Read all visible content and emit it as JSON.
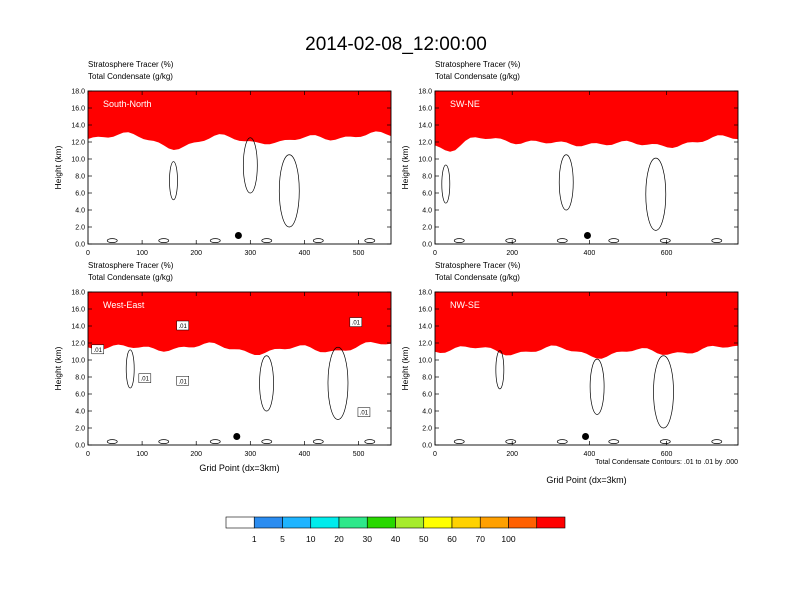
{
  "figure_title": "2014-02-08_12:00:00",
  "contour_info": "Total Condensate Contours: .01 to .01 by .000",
  "colorbar": {
    "colors": [
      "#ffffff",
      "#2b8cf0",
      "#1fb4ff",
      "#00ecec",
      "#2ee88a",
      "#28d800",
      "#a6ec2c",
      "#ffff00",
      "#ffd200",
      "#ffa000",
      "#ff6000",
      "#ff0000"
    ],
    "labels": [
      "1",
      "5",
      "10",
      "20",
      "30",
      "40",
      "50",
      "60",
      "70",
      "100"
    ]
  },
  "chart_data": [
    {
      "type": "contour-section",
      "panel_label": "South-North",
      "title_line1": "Stratosphere Tracer   (%)",
      "title_line2": "Total Condensate   (g/kg)",
      "ylabel": "Height (km)",
      "xlabel": "",
      "ylim": [
        0,
        18
      ],
      "xlim": [
        0,
        560
      ],
      "xticks": [
        "0",
        "100",
        "200",
        "300",
        "400",
        "500"
      ],
      "xtick_values": [
        0,
        100,
        200,
        300,
        400,
        500
      ],
      "yticks": [
        "0.0",
        "2.0",
        "4.0",
        "6.0",
        "8.0",
        "10.0",
        "12.0",
        "14.0",
        "16.0",
        "18.0"
      ],
      "marker_x": 278,
      "marker_y": 1.0,
      "contour_labels": [],
      "base_km": 15.2,
      "dips": [
        [
          170,
          4.0,
          60
        ],
        [
          300,
          1.2,
          25
        ],
        [
          360,
          3.2,
          40
        ]
      ]
    },
    {
      "type": "contour-section",
      "panel_label": "SW-NE",
      "title_line1": "Stratosphere Tracer   (%)",
      "title_line2": "Total Condensate   (g/kg)",
      "ylabel": "Height (km)",
      "xlabel": "",
      "ylim": [
        0,
        18
      ],
      "xlim": [
        0,
        785
      ],
      "xticks": [
        "0",
        "200",
        "400",
        "600"
      ],
      "xtick_values": [
        0,
        200,
        400,
        600
      ],
      "yticks": [
        "0.0",
        "2.0",
        "4.0",
        "6.0",
        "8.0",
        "10.0",
        "12.0",
        "14.0",
        "16.0",
        "18.0"
      ],
      "marker_x": 395,
      "marker_y": 1.0,
      "contour_labels": [],
      "base_km": 14.8,
      "dips": [
        [
          40,
          4.0,
          45
        ],
        [
          340,
          2.8,
          70
        ],
        [
          560,
          3.2,
          80
        ]
      ]
    },
    {
      "type": "contour-section",
      "panel_label": "West-East",
      "title_line1": "Stratosphere Tracer   (%)",
      "title_line2": "Total Condensate   (g/kg)",
      "ylabel": "Height (km)",
      "xlabel": "Grid Point (dx=3km)",
      "ylim": [
        0,
        18
      ],
      "xlim": [
        0,
        560
      ],
      "xticks": [
        "0",
        "100",
        "200",
        "300",
        "400",
        "500"
      ],
      "xtick_values": [
        0,
        100,
        200,
        300,
        400,
        500
      ],
      "yticks": [
        "0.0",
        "2.0",
        "4.0",
        "6.0",
        "8.0",
        "10.0",
        "12.0",
        "14.0",
        "16.0",
        "18.0"
      ],
      "marker_x": 275,
      "marker_y": 1.0,
      "contour_labels": [
        {
          "text": ".01",
          "x": 18,
          "y": 11.2
        },
        {
          "text": ".01",
          "x": 175,
          "y": 14.0
        },
        {
          "text": ".01",
          "x": 105,
          "y": 7.8
        },
        {
          "text": ".01",
          "x": 175,
          "y": 7.5
        },
        {
          "text": ".01",
          "x": 495,
          "y": 14.4
        },
        {
          "text": ".01",
          "x": 510,
          "y": 3.8
        }
      ],
      "base_km": 14.2,
      "dips": [
        [
          90,
          1.5,
          60
        ],
        [
          330,
          2.2,
          90
        ],
        [
          450,
          1.2,
          40
        ]
      ]
    },
    {
      "type": "contour-section",
      "panel_label": "NW-SE",
      "title_line1": "Stratosphere Tracer   (%)",
      "title_line2": "Total Condensate   (g/kg)",
      "ylabel": "Height (km)",
      "xlabel": "Grid Point (dx=3km)",
      "ylim": [
        0,
        18
      ],
      "xlim": [
        0,
        785
      ],
      "xticks": [
        "0",
        "200",
        "400",
        "600"
      ],
      "xtick_values": [
        0,
        200,
        400,
        600
      ],
      "yticks": [
        "0.0",
        "2.0",
        "4.0",
        "6.0",
        "8.0",
        "10.0",
        "12.0",
        "14.0",
        "16.0",
        "18.0"
      ],
      "marker_x": 390,
      "marker_y": 1.0,
      "contour_labels": [],
      "base_km": 13.8,
      "dips": [
        [
          180,
          1.2,
          60
        ],
        [
          420,
          2.2,
          80
        ],
        [
          580,
          1.8,
          60
        ]
      ]
    }
  ]
}
